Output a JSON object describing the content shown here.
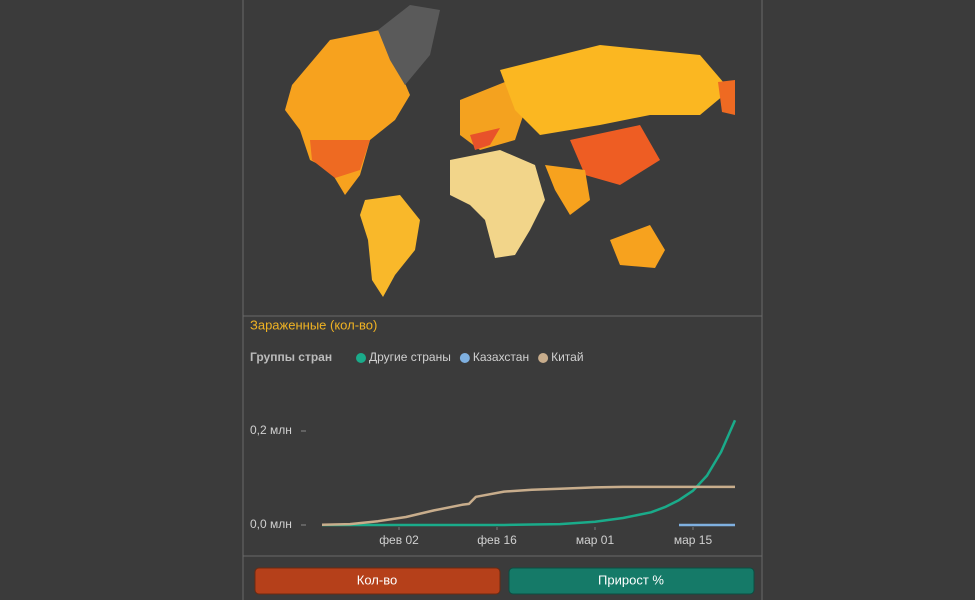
{
  "chart_data": {
    "type": "line",
    "title": "Зараженные (кол-во)",
    "legend_title": "Группы стран",
    "x": [
      "01-22",
      "01-26",
      "01-30",
      "02-03",
      "02-07",
      "02-11",
      "02-12",
      "02-13",
      "02-17",
      "02-21",
      "02-25",
      "03-01",
      "03-05",
      "03-09",
      "03-11",
      "03-13",
      "03-15",
      "03-17",
      "03-19",
      "03-21"
    ],
    "series": [
      {
        "name": "Другие страны",
        "color": "#1aab8a",
        "values": [
          0,
          0,
          0,
          0,
          0,
          0,
          0,
          0,
          0,
          0.001,
          0.002,
          0.007,
          0.015,
          0.027,
          0.038,
          0.053,
          0.073,
          0.105,
          0.155,
          0.223
        ]
      },
      {
        "name": "Казахстан",
        "color": "#7fb0e0",
        "values": [
          null,
          null,
          null,
          null,
          null,
          null,
          null,
          null,
          null,
          null,
          null,
          null,
          null,
          null,
          null,
          0,
          0,
          0,
          0,
          0
        ]
      },
      {
        "name": "Китай",
        "color": "#c8ad8c",
        "values": [
          0.0006,
          0.002,
          0.008,
          0.017,
          0.031,
          0.043,
          0.045,
          0.06,
          0.071,
          0.075,
          0.077,
          0.08,
          0.081,
          0.081,
          0.081,
          0.081,
          0.081,
          0.081,
          0.081,
          0.081
        ]
      }
    ],
    "xlim": [
      "01-22",
      "03-21"
    ],
    "xticks": [
      {
        "value": "02-02",
        "label": "фев 02"
      },
      {
        "value": "02-16",
        "label": "фев 16"
      },
      {
        "value": "03-01",
        "label": "мар 01"
      },
      {
        "value": "03-15",
        "label": "мар 15"
      }
    ],
    "ylim": [
      0,
      0.25
    ],
    "yticks": [
      {
        "value": 0,
        "label": "0,0 млн"
      },
      {
        "value": 0.2,
        "label": "0,2 млн"
      }
    ],
    "grid": false
  },
  "buttons": [
    "Кол-во",
    "Прирост %"
  ]
}
